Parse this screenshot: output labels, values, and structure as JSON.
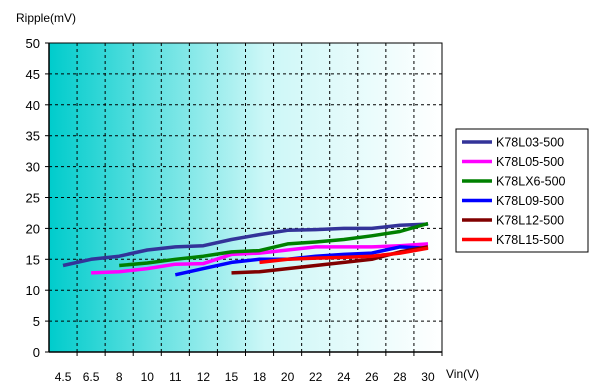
{
  "chart_data": {
    "type": "line",
    "ylabel": "Ripple(mV)",
    "xlabel": "Vin(V)",
    "x": [
      "4.5",
      "6.5",
      "8",
      "10",
      "11",
      "12",
      "15",
      "18",
      "20",
      "22",
      "24",
      "26",
      "28",
      "30"
    ],
    "yticks": [
      0,
      5,
      10,
      15,
      20,
      25,
      30,
      35,
      40,
      45,
      50
    ],
    "ylim": [
      0,
      50
    ],
    "grid": true,
    "legend_position": "right",
    "series": [
      {
        "name": "K78L03-500",
        "color": "#333399",
        "values": [
          14,
          15,
          15.5,
          16.5,
          17,
          17.2,
          18.2,
          19,
          19.7,
          19.8,
          20,
          20,
          20.5,
          20.7
        ]
      },
      {
        "name": "K78L05-500",
        "color": "#ff00ff",
        "values": [
          null,
          12.8,
          13,
          13.5,
          14.2,
          14.3,
          15.8,
          16,
          16.5,
          17,
          17,
          17,
          17.2,
          17.5
        ]
      },
      {
        "name": "K78LX6-500",
        "color": "#008000",
        "values": [
          null,
          null,
          14,
          14.4,
          15,
          15.5,
          16.2,
          16.4,
          17.5,
          17.8,
          18.2,
          18.8,
          19.5,
          20.8
        ]
      },
      {
        "name": "K78L09-500",
        "color": "#0000ff",
        "values": [
          null,
          null,
          null,
          null,
          12.5,
          13.5,
          14.5,
          15,
          15,
          15.5,
          15.8,
          16,
          17,
          16.8
        ]
      },
      {
        "name": "K78L12-500",
        "color": "#800000",
        "values": [
          null,
          null,
          null,
          null,
          null,
          null,
          12.8,
          13,
          13.5,
          14,
          14.5,
          15,
          16.2,
          17
        ]
      },
      {
        "name": "K78L15-500",
        "color": "#ff0000",
        "values": [
          null,
          null,
          null,
          null,
          null,
          null,
          null,
          14.5,
          15,
          15.2,
          15.3,
          15.5,
          16,
          16.8
        ]
      }
    ]
  }
}
